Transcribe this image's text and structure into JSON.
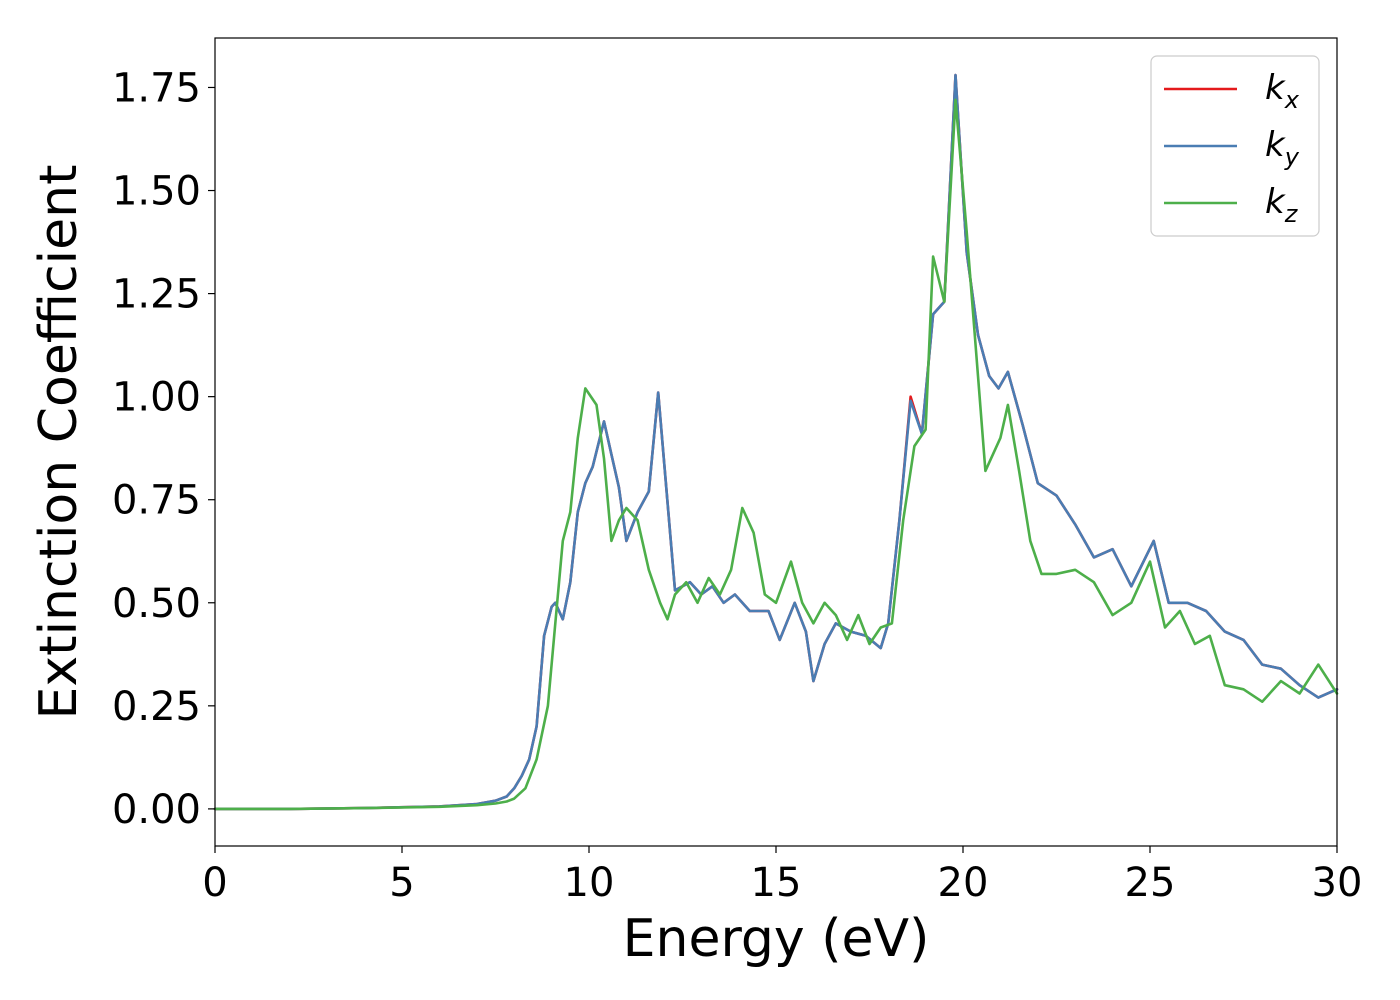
{
  "chart_data": {
    "type": "line",
    "title": "",
    "xlabel": "Energy (eV)",
    "ylabel": "Extinction Coefficient",
    "xlim": [
      0,
      30
    ],
    "ylim": [
      -0.09,
      1.87
    ],
    "xticks": [
      0,
      5,
      10,
      15,
      20,
      25,
      30
    ],
    "yticks": [
      0.0,
      0.25,
      0.5,
      0.75,
      1.0,
      1.25,
      1.5,
      1.75
    ],
    "ytick_labels": [
      "0.00",
      "0.25",
      "0.50",
      "0.75",
      "1.00",
      "1.25",
      "1.50",
      "1.75"
    ],
    "grid": false,
    "legend_position": "top-right",
    "series": [
      {
        "name": "k",
        "subscript": "x",
        "color": "#e41a1c",
        "x": [
          0,
          2,
          4,
          6,
          7,
          7.5,
          7.8,
          8.0,
          8.2,
          8.4,
          8.6,
          8.8,
          9.0,
          9.1,
          9.3,
          9.5,
          9.7,
          9.9,
          10.1,
          10.4,
          10.6,
          10.8,
          11.0,
          11.3,
          11.6,
          11.85,
          12.0,
          12.3,
          12.7,
          13.0,
          13.3,
          13.6,
          13.9,
          14.3,
          14.8,
          15.1,
          15.5,
          15.8,
          16.0,
          16.3,
          16.6,
          17.0,
          17.4,
          17.8,
          18.0,
          18.3,
          18.6,
          18.9,
          19.2,
          19.5,
          19.8,
          20.1,
          20.4,
          20.7,
          20.95,
          21.2,
          21.6,
          22.0,
          22.5,
          23.0,
          23.5,
          24.0,
          24.5,
          25.1,
          25.5,
          26.0,
          26.5,
          27.0,
          27.5,
          28.0,
          28.5,
          29.0,
          29.5,
          30.0
        ],
        "y": [
          0.0,
          0.0,
          0.002,
          0.006,
          0.012,
          0.02,
          0.03,
          0.05,
          0.08,
          0.12,
          0.2,
          0.42,
          0.49,
          0.5,
          0.46,
          0.55,
          0.72,
          0.79,
          0.83,
          0.94,
          0.86,
          0.78,
          0.65,
          0.72,
          0.77,
          1.01,
          0.85,
          0.53,
          0.55,
          0.52,
          0.54,
          0.5,
          0.52,
          0.48,
          0.48,
          0.41,
          0.5,
          0.43,
          0.31,
          0.4,
          0.45,
          0.43,
          0.42,
          0.39,
          0.45,
          0.7,
          1.0,
          0.91,
          1.2,
          1.23,
          1.78,
          1.35,
          1.15,
          1.05,
          1.02,
          1.06,
          0.93,
          0.79,
          0.76,
          0.69,
          0.61,
          0.63,
          0.54,
          0.65,
          0.5,
          0.5,
          0.48,
          0.43,
          0.41,
          0.35,
          0.34,
          0.3,
          0.27,
          0.29
        ]
      },
      {
        "name": "k",
        "subscript": "y",
        "color": "#4a7db3",
        "x": [
          0,
          2,
          4,
          6,
          7,
          7.5,
          7.8,
          8.0,
          8.2,
          8.4,
          8.6,
          8.8,
          9.0,
          9.1,
          9.3,
          9.5,
          9.7,
          9.9,
          10.1,
          10.4,
          10.6,
          10.8,
          11.0,
          11.3,
          11.6,
          11.85,
          12.0,
          12.3,
          12.7,
          13.0,
          13.3,
          13.6,
          13.9,
          14.3,
          14.8,
          15.1,
          15.5,
          15.8,
          16.0,
          16.3,
          16.6,
          17.0,
          17.4,
          17.8,
          18.0,
          18.3,
          18.6,
          18.9,
          19.2,
          19.5,
          19.8,
          20.1,
          20.4,
          20.7,
          20.95,
          21.2,
          21.6,
          22.0,
          22.5,
          23.0,
          23.5,
          24.0,
          24.5,
          25.1,
          25.5,
          26.0,
          26.5,
          27.0,
          27.5,
          28.0,
          28.5,
          29.0,
          29.5,
          30.0
        ],
        "y": [
          0.0,
          0.0,
          0.002,
          0.006,
          0.012,
          0.02,
          0.03,
          0.05,
          0.08,
          0.12,
          0.2,
          0.42,
          0.49,
          0.5,
          0.46,
          0.55,
          0.72,
          0.79,
          0.83,
          0.94,
          0.86,
          0.78,
          0.65,
          0.72,
          0.77,
          1.01,
          0.85,
          0.53,
          0.55,
          0.52,
          0.54,
          0.5,
          0.52,
          0.48,
          0.48,
          0.41,
          0.5,
          0.43,
          0.31,
          0.4,
          0.45,
          0.43,
          0.42,
          0.39,
          0.45,
          0.7,
          0.99,
          0.91,
          1.2,
          1.23,
          1.78,
          1.35,
          1.15,
          1.05,
          1.02,
          1.06,
          0.93,
          0.79,
          0.76,
          0.69,
          0.61,
          0.63,
          0.54,
          0.65,
          0.5,
          0.5,
          0.48,
          0.43,
          0.41,
          0.35,
          0.34,
          0.3,
          0.27,
          0.29
        ]
      },
      {
        "name": "k",
        "subscript": "z",
        "color": "#4daf4a",
        "x": [
          0,
          2,
          4,
          6,
          7,
          7.5,
          7.8,
          8.0,
          8.3,
          8.6,
          8.9,
          9.1,
          9.3,
          9.5,
          9.7,
          9.9,
          10.2,
          10.4,
          10.6,
          10.8,
          11.0,
          11.3,
          11.6,
          11.9,
          12.1,
          12.3,
          12.6,
          12.9,
          13.2,
          13.5,
          13.8,
          14.1,
          14.4,
          14.7,
          15.0,
          15.4,
          15.7,
          16.0,
          16.3,
          16.6,
          16.9,
          17.2,
          17.5,
          17.8,
          18.1,
          18.4,
          18.7,
          19.0,
          19.2,
          19.5,
          19.8,
          20.1,
          20.4,
          20.6,
          20.8,
          21.0,
          21.2,
          21.5,
          21.8,
          22.1,
          22.5,
          23.0,
          23.5,
          24.0,
          24.5,
          25.0,
          25.4,
          25.8,
          26.2,
          26.6,
          27.0,
          27.5,
          28.0,
          28.5,
          29.0,
          29.5,
          30.0
        ],
        "y": [
          0.0,
          0.0,
          0.002,
          0.005,
          0.009,
          0.013,
          0.018,
          0.025,
          0.05,
          0.12,
          0.25,
          0.45,
          0.65,
          0.72,
          0.9,
          1.02,
          0.98,
          0.85,
          0.65,
          0.7,
          0.73,
          0.7,
          0.58,
          0.5,
          0.46,
          0.52,
          0.55,
          0.5,
          0.56,
          0.52,
          0.58,
          0.73,
          0.67,
          0.52,
          0.5,
          0.6,
          0.5,
          0.45,
          0.5,
          0.47,
          0.41,
          0.47,
          0.4,
          0.44,
          0.45,
          0.7,
          0.88,
          0.92,
          1.34,
          1.23,
          1.72,
          1.4,
          1.05,
          0.82,
          0.86,
          0.9,
          0.98,
          0.82,
          0.65,
          0.57,
          0.57,
          0.58,
          0.55,
          0.47,
          0.5,
          0.6,
          0.44,
          0.48,
          0.4,
          0.42,
          0.3,
          0.29,
          0.26,
          0.31,
          0.28,
          0.35,
          0.28
        ]
      }
    ]
  }
}
